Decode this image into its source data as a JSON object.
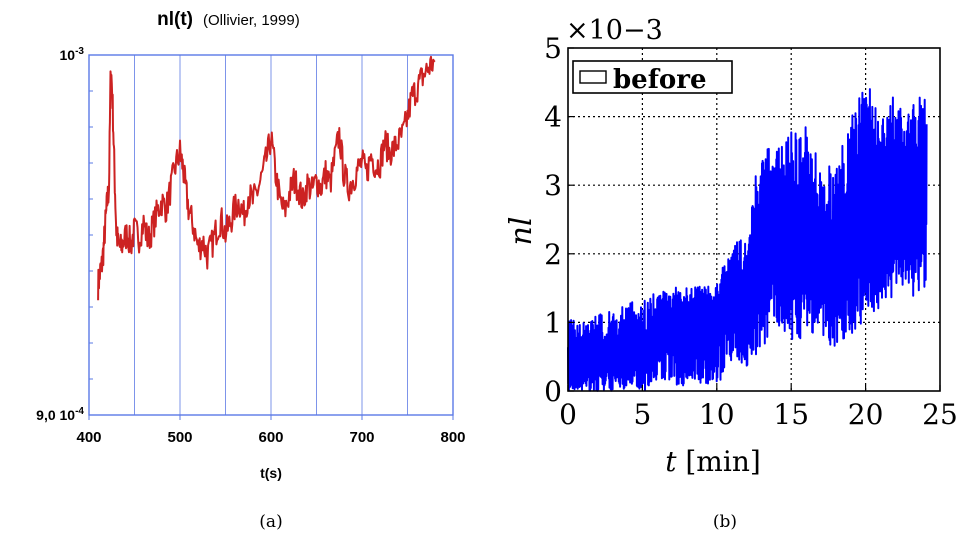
{
  "chart_data": [
    {
      "type": "line",
      "title": "nl(t)",
      "subtitle": "(Ollivier, 1999)",
      "xlabel": "t(s)",
      "ylabel": "",
      "xlim": [
        400,
        800
      ],
      "ylim": [
        0.0009,
        0.001
      ],
      "yscale": "log",
      "xticks": [
        400,
        500,
        600,
        700,
        800
      ],
      "xtick_labels": [
        "400",
        "500",
        "600",
        "700",
        "800"
      ],
      "x_gridlines": [
        450,
        500,
        550,
        600,
        650,
        700,
        750
      ],
      "ytick_labels": [
        "10-3",
        "9,0 10-4"
      ],
      "ytick_values": [
        0.001,
        0.0009
      ],
      "grid": true,
      "caption": "(a)",
      "series": [
        {
          "color": "#cc2222",
          "x": [
            410,
            412,
            414,
            416,
            418,
            420,
            422,
            424,
            426,
            428,
            430,
            432,
            435,
            438,
            442,
            446,
            450,
            455,
            460,
            465,
            470,
            475,
            480,
            485,
            490,
            495,
            500,
            503,
            506,
            510,
            515,
            520,
            525,
            530,
            535,
            540,
            545,
            550,
            555,
            560,
            565,
            570,
            575,
            580,
            585,
            590,
            595,
            600,
            605,
            610,
            615,
            620,
            625,
            630,
            635,
            640,
            645,
            650,
            655,
            660,
            665,
            670,
            675,
            680,
            685,
            690,
            695,
            700,
            705,
            710,
            715,
            720,
            725,
            730,
            735,
            740,
            745,
            750,
            755,
            760,
            765,
            770,
            775,
            780
          ],
          "values": [
            0.000935,
            0.000938,
            0.00094,
            0.000945,
            0.000952,
            0.000958,
            0.000962,
            0.000998,
            0.000985,
            0.000966,
            0.00095,
            0.000946,
            0.000945,
            0.000947,
            0.000949,
            0.000946,
            0.00095,
            0.000948,
            0.000952,
            0.000947,
            0.000951,
            0.000955,
            0.000958,
            0.000956,
            0.000962,
            0.000968,
            0.000972,
            0.000968,
            0.000962,
            0.000955,
            0.000951,
            0.000945,
            0.000947,
            0.000943,
            0.000946,
            0.00095,
            0.000953,
            0.000949,
            0.000952,
            0.000956,
            0.000958,
            0.000954,
            0.00096,
            0.000958,
            0.000961,
            0.000965,
            0.00097,
            0.000976,
            0.000966,
            0.000958,
            0.000955,
            0.00096,
            0.000964,
            0.000962,
            0.000958,
            0.000963,
            0.000961,
            0.000964,
            0.000962,
            0.000966,
            0.000963,
            0.00097,
            0.000977,
            0.000966,
            0.000962,
            0.000964,
            0.000967,
            0.000969,
            0.000966,
            0.000971,
            0.000968,
            0.000969,
            0.000975,
            0.000972,
            0.000973,
            0.000975,
            0.000977,
            0.000982,
            0.000988,
            0.00099,
            0.000993,
            0.000995,
            0.000997,
            0.000998
          ]
        }
      ]
    },
    {
      "type": "line",
      "title": "",
      "xlabel": "t [min]",
      "ylabel": "nl",
      "xlim": [
        0,
        25
      ],
      "ylim": [
        0,
        5
      ],
      "y_multiplier": "×10−3",
      "xticks": [
        0,
        5,
        10,
        15,
        20,
        25
      ],
      "yticks": [
        0,
        1,
        2,
        3,
        4,
        5
      ],
      "grid": true,
      "legend": "top-left",
      "caption": "(b)",
      "series": [
        {
          "name": "before",
          "color": "#0000ff",
          "x": [
            0,
            1,
            2,
            3,
            4,
            5,
            6,
            7,
            8,
            9,
            10,
            11,
            12,
            13,
            14,
            15,
            16,
            17,
            18,
            19,
            20,
            21,
            22,
            23,
            24
          ],
          "values": [
            0.5,
            0.45,
            0.5,
            0.45,
            0.6,
            0.55,
            0.8,
            0.9,
            0.95,
            0.85,
            1.0,
            1.3,
            1.4,
            1.9,
            2.3,
            1.9,
            2.2,
            2.0,
            1.9,
            2.1,
            2.7,
            2.6,
            2.8,
            2.6,
            2.9
          ],
          "upper": [
            1.05,
            1.0,
            1.1,
            1.2,
            1.3,
            1.3,
            1.45,
            1.5,
            1.55,
            1.55,
            1.6,
            2.1,
            2.4,
            3.6,
            3.5,
            3.8,
            3.9,
            3.3,
            3.3,
            4.0,
            4.6,
            4.0,
            4.4,
            4.1,
            4.5
          ],
          "lower": [
            0.0,
            0.0,
            0.0,
            0.0,
            0.0,
            0.0,
            0.05,
            0.1,
            0.05,
            0.1,
            0.1,
            0.35,
            0.35,
            0.6,
            0.9,
            0.7,
            0.8,
            0.8,
            0.6,
            0.8,
            1.0,
            1.2,
            1.4,
            1.3,
            1.5
          ]
        }
      ]
    }
  ]
}
